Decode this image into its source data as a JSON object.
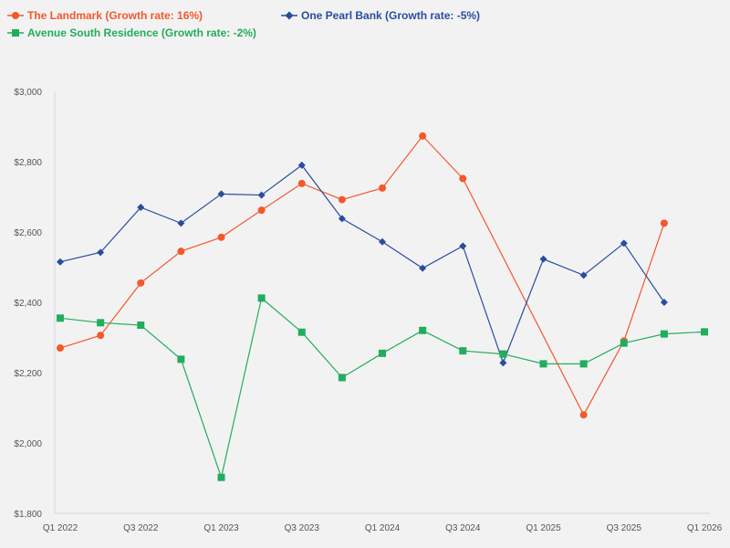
{
  "chart_data": {
    "type": "line",
    "title": "",
    "xlabel": "",
    "ylabel": "",
    "ylim": [
      1800,
      3000
    ],
    "y_ticks": [
      "$1,800",
      "$2,000",
      "$2,200",
      "$2,400",
      "$2,600",
      "$2,800",
      "$3,000"
    ],
    "y_tick_values": [
      1800,
      2000,
      2200,
      2400,
      2600,
      2800,
      3000
    ],
    "x_tick_labels": [
      "Q1 2022",
      "Q3 2022",
      "Q1 2023",
      "Q3 2023",
      "Q1 2024",
      "Q3 2024",
      "Q1 2025",
      "Q3 2025",
      "Q1 2026"
    ],
    "x_tick_indices": [
      0,
      2,
      4,
      6,
      8,
      10,
      12,
      14,
      16
    ],
    "n_points": 17,
    "series": [
      {
        "name": "The Landmark (Growth rate: 16%)",
        "color": "#f4582b",
        "marker": "circle",
        "values": [
          2270,
          2306,
          2455,
          2545,
          2585,
          2662,
          2738,
          2692,
          2725,
          2873,
          2752,
          null,
          null,
          2080,
          2290,
          2625,
          null
        ]
      },
      {
        "name": "One Pearl Bank (Growth rate: -5%)",
        "color": "#2a4d9c",
        "marker": "diamond",
        "values": [
          2515,
          2542,
          2670,
          2625,
          2708,
          2705,
          2790,
          2638,
          2572,
          2497,
          2560,
          2228,
          2523,
          2477,
          2568,
          2400,
          null
        ]
      },
      {
        "name": "Avenue South Residence (Growth rate: -2%)",
        "color": "#22ad5c",
        "marker": "square",
        "values": [
          2355,
          2342,
          2335,
          2238,
          1902,
          2412,
          2315,
          2186,
          2255,
          2320,
          2262,
          2253,
          2225,
          2225,
          2284,
          2310,
          2316
        ]
      }
    ]
  }
}
